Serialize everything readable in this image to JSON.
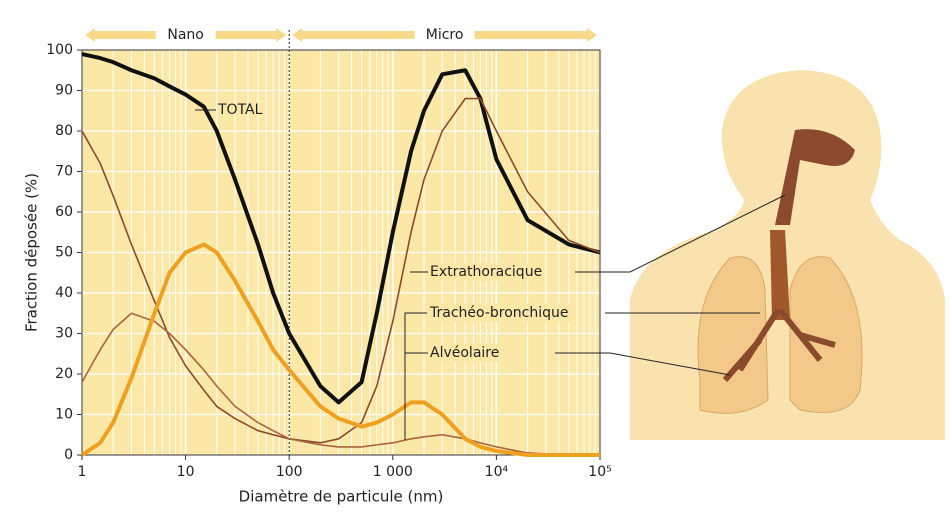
{
  "chart_data": {
    "type": "line",
    "x_label": "Diamètre de particule (nm)",
    "y_label": "Fraction déposée (%)",
    "log_x": true,
    "grid": true,
    "minor_grid": true,
    "background": "#fbe8a6",
    "xlim": [
      1,
      100000
    ],
    "ylim": [
      0,
      100
    ],
    "xticks": [
      1,
      10,
      100,
      {
        "value": 1000,
        "label": "1 000"
      },
      {
        "value": 10000,
        "label": "10⁴"
      },
      {
        "value": 100000,
        "label": "10⁵"
      }
    ],
    "yticks": [
      0,
      10,
      20,
      30,
      40,
      50,
      60,
      70,
      80,
      90,
      100
    ],
    "bands": [
      {
        "label": "Nano",
        "from": 1,
        "to": 100
      },
      {
        "label": "Micro",
        "from": 100,
        "to": 100000
      }
    ],
    "x": [
      1,
      1.5,
      2,
      3,
      5,
      7,
      10,
      15,
      20,
      30,
      50,
      70,
      100,
      200,
      300,
      500,
      700,
      1000,
      1500,
      2000,
      3000,
      5000,
      7000,
      10000,
      20000,
      50000,
      100000
    ],
    "series": [
      {
        "name": "TOTAL",
        "color": "#111111",
        "values": [
          99,
          98,
          97,
          95,
          93,
          91,
          89,
          86,
          80,
          68,
          52,
          40,
          30,
          17,
          13,
          18,
          35,
          55,
          75,
          85,
          94,
          95,
          88,
          73,
          58,
          52,
          50
        ]
      },
      {
        "name": "Extrathoracique",
        "color": "#8b4a2b",
        "values": [
          80,
          72,
          64,
          52,
          38,
          29,
          22,
          16,
          12,
          9,
          6,
          5,
          4,
          3,
          4,
          8,
          17,
          33,
          55,
          68,
          80,
          88,
          88,
          80,
          65,
          53,
          50
        ]
      },
      {
        "name": "Trachéo-bronchique",
        "color": "#a8643c",
        "values": [
          18,
          26,
          31,
          35,
          33,
          30,
          26,
          21,
          17,
          12,
          8,
          6,
          4,
          2.5,
          2,
          2,
          2.5,
          3,
          4,
          4.5,
          5,
          4,
          3,
          2,
          0.5,
          0,
          0
        ]
      },
      {
        "name": "Alvéolaire",
        "color": "#f0a020",
        "values": [
          0,
          3,
          8,
          19,
          35,
          45,
          50,
          52,
          50,
          43,
          33,
          26,
          21,
          12,
          9,
          7,
          8,
          10,
          13,
          13,
          10,
          4,
          2,
          1,
          0,
          0,
          0
        ]
      }
    ]
  }
}
